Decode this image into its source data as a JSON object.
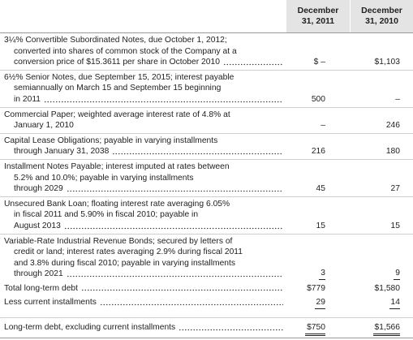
{
  "table": {
    "columns": [
      "December 31, 2011",
      "December 31, 2010"
    ],
    "rows": [
      {
        "label": [
          "3¼% Convertible Subordinated Notes, due October 1, 2012;",
          "converted into shares of common stock of the Company at a",
          "conversion price of $15.3611 per share in October 2010"
        ],
        "values": [
          "$ –",
          "$1,103"
        ]
      },
      {
        "label": [
          "6½% Senior Notes, due September 15, 2015; interest payable",
          "semiannually on March 15 and September 15 beginning",
          "in 2011"
        ],
        "values": [
          "500",
          "–"
        ]
      },
      {
        "label": [
          "Commercial Paper; weighted average interest rate of 4.8% at",
          "January 1, 2010"
        ],
        "values": [
          "–",
          "246"
        ]
      },
      {
        "label": [
          "Capital Lease Obligations; payable in varying installments",
          "through January 31, 2038"
        ],
        "values": [
          "216",
          "180"
        ]
      },
      {
        "label": [
          "Installment Notes Payable; interest imputed at rates between",
          "5.2% and 10.0%; payable in varying installments",
          "through 2029"
        ],
        "values": [
          "45",
          "27"
        ]
      },
      {
        "label": [
          "Unsecured Bank Loan; floating interest rate averaging 6.05%",
          "in fiscal 2011 and 5.90% in fiscal 2010; payable in",
          "August 2013"
        ],
        "values": [
          "15",
          "15"
        ]
      },
      {
        "label": [
          "Variable-Rate Industrial Revenue Bonds; secured by letters of",
          "credit or land; interest rates averaging 2.9% during fiscal 2011",
          "and 3.8% during fiscal 2010; payable in varying installments",
          "through 2021"
        ],
        "values": [
          "3",
          "9"
        ]
      },
      {
        "label": [
          "Total long-term debt"
        ],
        "values": [
          "$779",
          "$1,580"
        ]
      },
      {
        "label": [
          "Less current installments"
        ],
        "values": [
          "29",
          "14"
        ]
      },
      {
        "label": [
          "Long-term debt, excluding current installments"
        ],
        "values": [
          "$750",
          "$1,566"
        ]
      }
    ]
  }
}
